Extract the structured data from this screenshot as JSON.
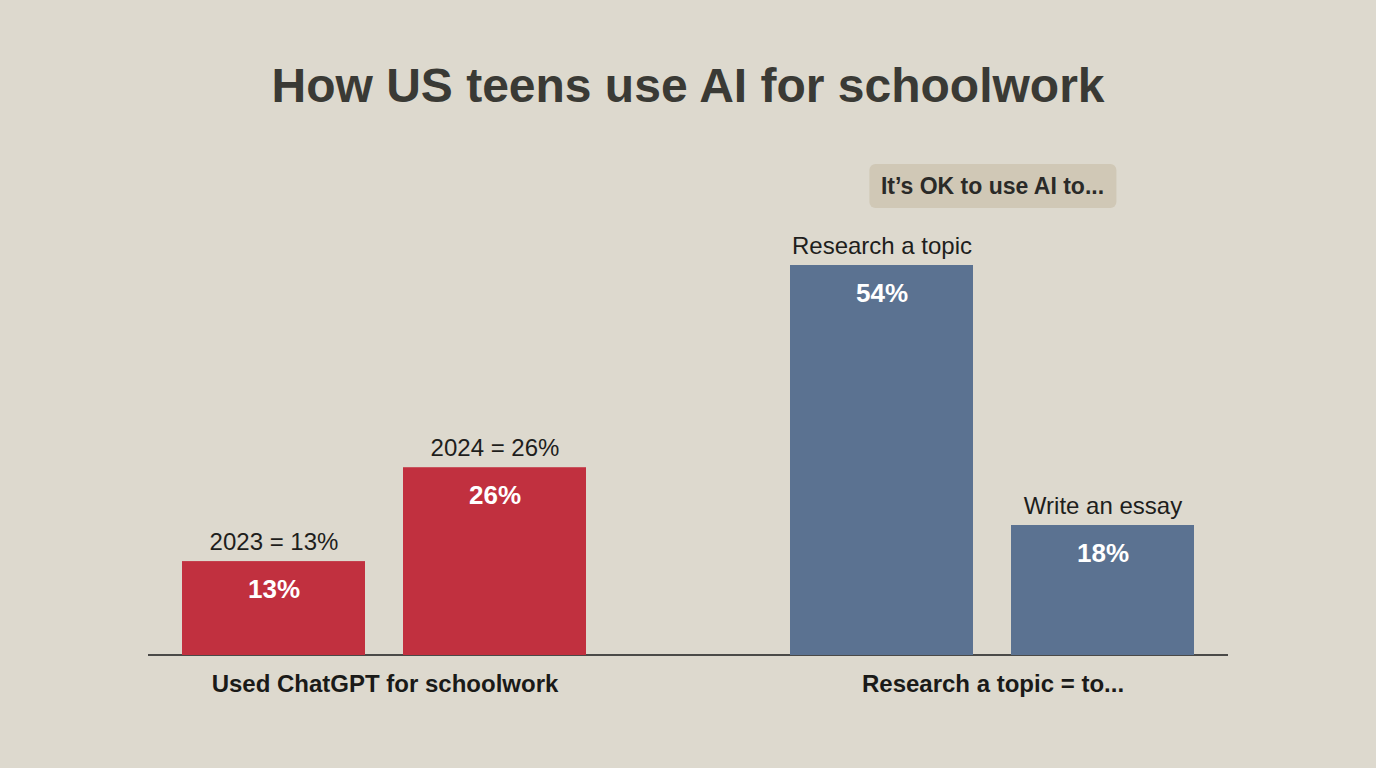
{
  "chart_data": [
    {
      "type": "bar",
      "title": "How US teens use AI for schoolwork",
      "xlabel": "Used ChatGPT for schoolwork",
      "categories": [
        "2023 = 13%",
        "2024 = 26%"
      ],
      "values": [
        13,
        26
      ],
      "value_labels": [
        "13%",
        "26%"
      ],
      "color": "#c1303f",
      "ylim": [
        0,
        54
      ],
      "data_labels": true,
      "tick_labels": false
    },
    {
      "type": "bar",
      "annotation": "It’s OK to use AI to...",
      "xlabel": "Research a topic = to...",
      "categories": [
        "Research a topic",
        "Write an essay"
      ],
      "values": [
        54,
        18
      ],
      "value_labels": [
        "54%",
        "18%"
      ],
      "color": "#5b7291",
      "ylim": [
        0,
        54
      ],
      "data_labels": true,
      "tick_labels": false
    }
  ]
}
